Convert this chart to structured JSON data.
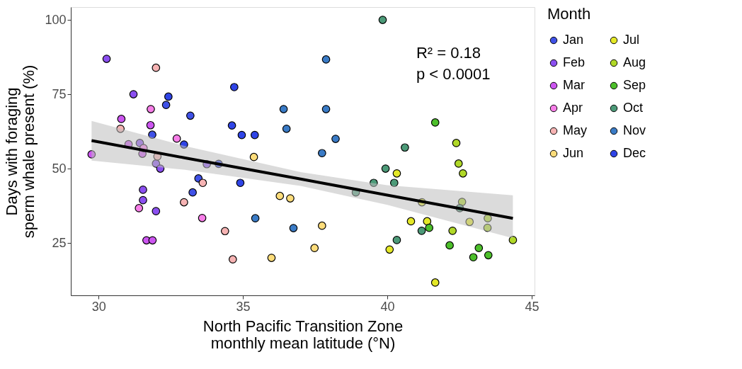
{
  "chart_data": {
    "type": "scatter",
    "xlabel": "North Pacific Transition Zone\nmonthly mean latitude (°N)",
    "ylabel": "Days with foraging\nsperm whale present (%)",
    "legend_title": "Month",
    "annotations": [
      "R² = 0.18",
      "p < 0.0001"
    ],
    "xlim": [
      29.04,
      45.1
    ],
    "ylim": [
      7.4,
      104.3
    ],
    "xticks": [
      30,
      35,
      40,
      45
    ],
    "yticks": [
      25,
      50,
      75,
      100
    ],
    "grid": false,
    "legend": "right",
    "marker": "circle",
    "series": [
      {
        "name": "Jan",
        "color": "#3f51e6",
        "x": [
          32.34,
          33.18,
          31.86,
          33.46,
          33.26
        ],
        "values": [
          71.4,
          67.8,
          61.4,
          46.7,
          42.0
        ]
      },
      {
        "name": "Feb",
        "color": "#8b4ff0",
        "x": [
          30.28,
          31.21,
          31.43,
          31.99,
          32.14,
          33.75,
          31.54,
          31.54,
          31.99
        ],
        "values": [
          86.9,
          75.0,
          58.6,
          51.7,
          50.0,
          51.5,
          42.9,
          39.4,
          35.7
        ]
      },
      {
        "name": "Mar",
        "color": "#cc55f0",
        "x": [
          30.79,
          31.8,
          31.04,
          29.76,
          31.52,
          31.66,
          31.87
        ],
        "values": [
          66.7,
          64.6,
          58.2,
          54.8,
          55.0,
          25.9,
          25.9
        ]
      },
      {
        "name": "Apr",
        "color": "#f77ee8",
        "x": [
          31.81,
          32.71,
          31.56,
          31.4,
          33.59
        ],
        "values": [
          70.0,
          60.1,
          56.9,
          36.7,
          33.4
        ]
      },
      {
        "name": "May",
        "color": "#f6b3b3",
        "x": [
          31.99,
          30.76,
          32.04,
          33.61,
          32.96,
          34.38,
          34.65
        ],
        "values": [
          83.9,
          63.4,
          54.1,
          45.2,
          38.7,
          29.0,
          19.5
        ]
      },
      {
        "name": "Jun",
        "color": "#fcdc7a",
        "x": [
          35.38,
          36.28,
          36.64,
          37.74,
          35.99,
          37.48
        ],
        "values": [
          53.9,
          40.8,
          40.0,
          30.8,
          20.0,
          23.3
        ]
      },
      {
        "name": "Jul",
        "color": "#e4e827",
        "x": [
          40.33,
          41.2,
          40.82,
          41.38,
          42.85,
          40.08,
          41.66
        ],
        "values": [
          48.4,
          38.7,
          32.3,
          32.3,
          32.1,
          22.8,
          11.7
        ]
      },
      {
        "name": "Aug",
        "color": "#b0d827",
        "x": [
          42.39,
          42.47,
          42.62,
          42.59,
          43.48,
          43.47,
          42.26,
          44.35
        ],
        "values": [
          58.6,
          51.7,
          48.4,
          38.8,
          33.3,
          30.1,
          29.1,
          26.0
        ]
      },
      {
        "name": "Sep",
        "color": "#4cbf2a",
        "x": [
          41.66,
          41.45,
          42.16,
          43.17,
          42.98,
          43.5
        ],
        "values": [
          65.5,
          30.1,
          24.2,
          23.3,
          20.2,
          20.9
        ]
      },
      {
        "name": "Oct",
        "color": "#4c9a78",
        "x": [
          39.84,
          40.61,
          39.94,
          39.53,
          38.91,
          40.24,
          42.51,
          41.19,
          40.33
        ],
        "values": [
          100,
          57.1,
          50.0,
          45.2,
          42.0,
          45.2,
          36.7,
          29.1,
          26.0
        ]
      },
      {
        "name": "Nov",
        "color": "#3a7bc6",
        "x": [
          37.88,
          36.41,
          37.88,
          36.51,
          38.21,
          37.74,
          35.43,
          36.75
        ],
        "values": [
          86.7,
          70.0,
          70.0,
          63.4,
          60.0,
          55.2,
          33.3,
          30.0
        ]
      },
      {
        "name": "Dec",
        "color": "#2f44e6",
        "x": [
          32.42,
          32.96,
          34.16,
          34.7,
          34.62,
          34.96,
          35.41,
          34.91
        ],
        "values": [
          74.2,
          58.1,
          51.6,
          77.4,
          64.5,
          61.3,
          61.3,
          45.2
        ]
      },
      {
        "type": "line",
        "marker": "none",
        "color": "#000000",
        "x": [
          29.76,
          33,
          37,
          40,
          44.35
        ],
        "values": [
          59.4,
          53.6,
          46.5,
          41.1,
          33.3
        ],
        "lower": [
          52.7,
          49.6,
          44.2,
          37.8,
          26.6
        ],
        "upper": [
          66.0,
          57.6,
          48.8,
          44.4,
          41.0
        ]
      }
    ]
  }
}
